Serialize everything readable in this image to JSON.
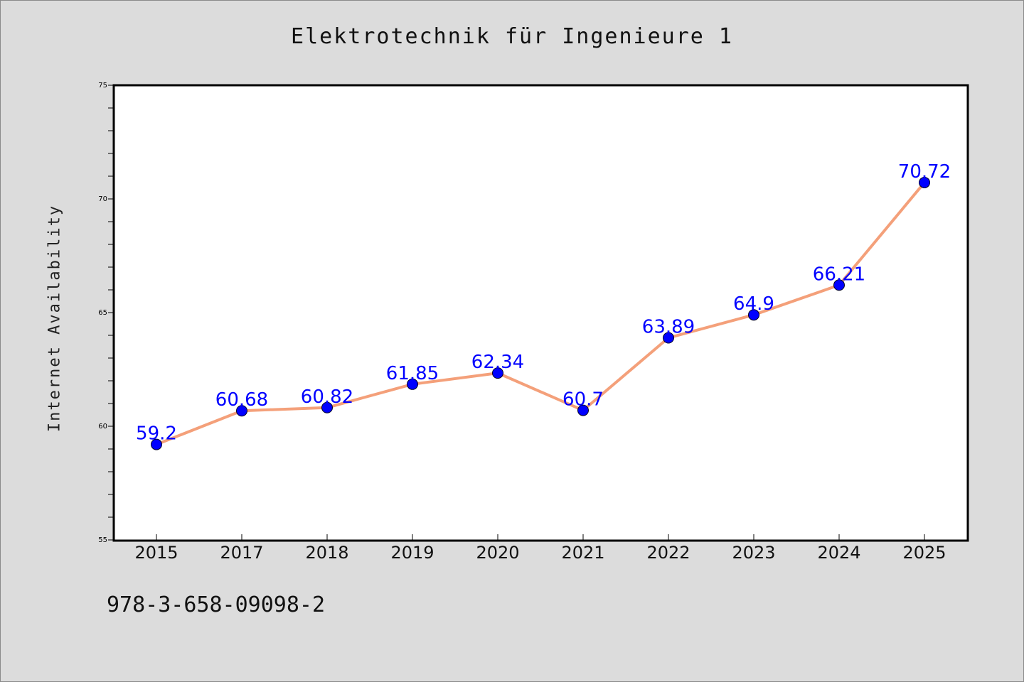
{
  "chart_data": {
    "type": "line",
    "title": "Elektrotechnik für Ingenieure 1",
    "xlabel": "",
    "ylabel": "Internet Availability",
    "footer_text": "978-3-658-09098-2",
    "categories": [
      "2015",
      "2017",
      "2018",
      "2019",
      "2020",
      "2021",
      "2022",
      "2023",
      "2024",
      "2025"
    ],
    "series": [
      {
        "values": [
          59.2,
          60.68,
          60.82,
          61.85,
          62.34,
          60.7,
          63.89,
          64.9,
          66.21,
          70.72
        ],
        "labels": [
          "59.2",
          "60.68",
          "60.82",
          "61.85",
          "62.34",
          "60.7",
          "63.89",
          "64.9",
          "66.21",
          "70.72"
        ],
        "line_color": "#f4a07a",
        "marker_color": "#0000ff",
        "label_color": "#0000ff"
      }
    ],
    "ylim": [
      55,
      75
    ],
    "yticks": [
      55,
      60,
      65,
      70,
      75
    ],
    "grid": false,
    "legend": "none",
    "background": "#dcdcdc",
    "plot_background": "#ffffff"
  }
}
